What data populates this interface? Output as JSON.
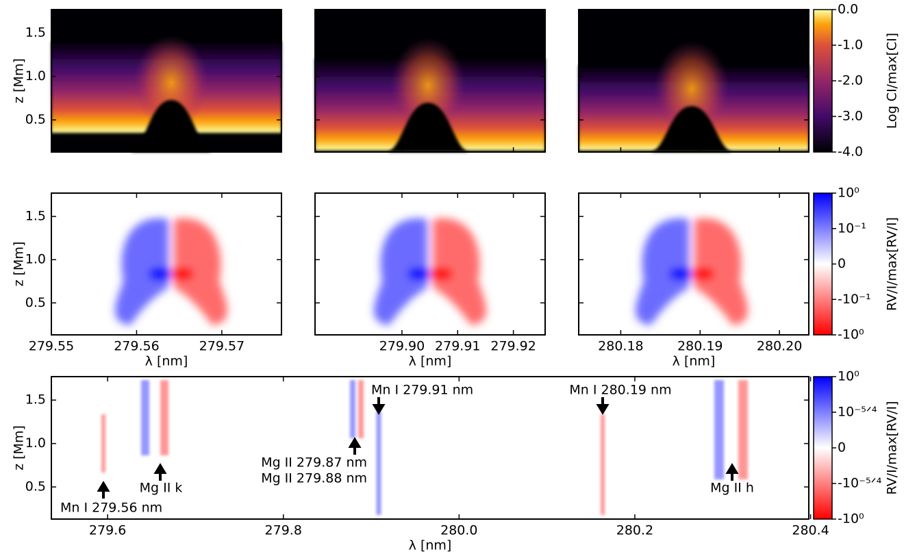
{
  "chart_data": [
    {
      "type": "heatmap",
      "ylabel": "z [Mm]",
      "ylim": [
        0.13,
        1.77
      ],
      "yticks": [
        0.5,
        {
          "value": 1,
          "label": "1.0"
        },
        1.5
      ]
    },
    {
      "type": "heatmap",
      "ylim": [
        0.13,
        1.77
      ],
      "yticks": [
        0.5,
        {
          "value": 1,
          "label": "1.0"
        },
        1.5
      ]
    },
    {
      "type": "heatmap",
      "ylim": [
        0.13,
        1.77
      ],
      "yticks": [
        0.5,
        {
          "value": 1,
          "label": "1.0"
        },
        1.5
      ],
      "colorbar": {
        "label": "Log CI/max[CI]",
        "clim": [
          -4,
          0
        ],
        "ticks": [
          {
            "value": 0,
            "label": "0.0"
          },
          {
            "value": -1,
            "label": "-1.0"
          },
          {
            "value": -2,
            "label": "-2.0"
          },
          {
            "value": -3,
            "label": "-3.0"
          },
          {
            "value": -4,
            "label": "-4.0"
          }
        ]
      }
    },
    {
      "type": "heatmap",
      "ylabel": "z [Mm]",
      "xlabel": "λ [nm]",
      "xlim": [
        279.55,
        279.577
      ],
      "xticks": [
        279.55,
        279.56,
        279.57
      ],
      "ylim": [
        0.13,
        1.77
      ],
      "yticks": [
        0.5,
        {
          "value": 1,
          "label": "1.0"
        },
        1.5
      ]
    },
    {
      "type": "heatmap",
      "xlabel": "λ [nm]",
      "xlim": [
        279.8844,
        279.9257
      ],
      "xticks": [
        {
          "value": 279.9,
          "label": "279.90"
        },
        279.91,
        279.92
      ],
      "ylim": [
        0.13,
        1.77
      ],
      "yticks": [
        0.5,
        {
          "value": 1,
          "label": "1.0"
        },
        1.5
      ]
    },
    {
      "type": "heatmap",
      "xlabel": "λ [nm]",
      "xlim": [
        280.1747,
        280.2037
      ],
      "xticks": [
        280.18,
        280.19,
        {
          "value": 280.2,
          "label": "280.20"
        }
      ],
      "ylim": [
        0.13,
        1.77
      ],
      "yticks": [
        0.5,
        {
          "value": 1,
          "label": "1.0"
        },
        1.5
      ],
      "colorbar": {
        "label": "RV/I/max[RV/I]",
        "labels": [
          "10⁰",
          "10⁻¹",
          "0",
          "-10⁻¹",
          "-10⁰"
        ]
      }
    },
    {
      "type": "heatmap",
      "ylabel": "z [Mm]",
      "xlabel": "λ [nm]",
      "xlim": [
        279.536,
        280.398
      ],
      "xticks": [
        279.6,
        279.8,
        {
          "value": 280,
          "label": "280.0"
        },
        280.2,
        280.4
      ],
      "ylim": [
        0.13,
        1.77
      ],
      "yticks": [
        0.5,
        {
          "value": 1,
          "label": "1.0"
        },
        1.5
      ],
      "annotations": [
        "Mn I 279.56 nm",
        "Mg II k",
        "Mg II 279.87 nm",
        "Mg II 279.88 nm",
        "Mn I 279.91 nm",
        "Mn I 280.19 nm",
        "Mg II h"
      ],
      "colorbar": {
        "label": "RV/I/max[RV/I]",
        "labels": [
          "10⁰",
          "10⁻⁵ᐟ⁴",
          "0",
          "-10⁻⁵ᐟ⁴",
          "-10⁰"
        ]
      }
    }
  ]
}
